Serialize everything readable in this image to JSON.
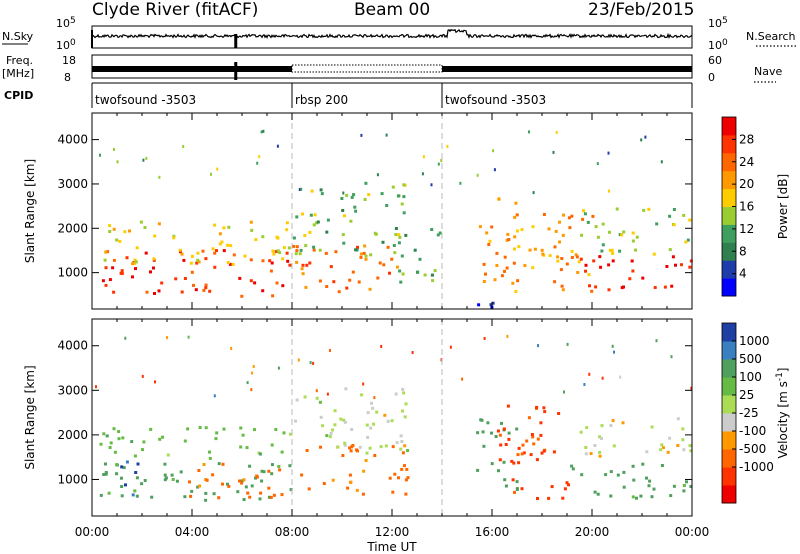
{
  "header": {
    "station": "Clyde River (fitACF)",
    "beam": "Beam 00",
    "date": "23/Feb/2015"
  },
  "strips": {
    "nsky_label": "N.Sky",
    "nsearch_label": "N.Search",
    "nsky_ticks": [
      "10^5",
      "10^0"
    ],
    "nsearch_ticks": [
      "10^5",
      "10^0"
    ],
    "freq_label": "Freq.",
    "freq_unit": "[MHz]",
    "freq_ticks": [
      "18",
      "8"
    ],
    "nave_label": "Nave",
    "nave_ticks": [
      "60",
      "0"
    ],
    "cpid_label": "CPID",
    "cpid_segments": [
      {
        "name": "twofsound -3503",
        "start": 0,
        "end": 8
      },
      {
        "name": "rbsp 200",
        "start": 8,
        "end": 14
      },
      {
        "name": "twofsound -3503",
        "start": 14,
        "end": 24
      }
    ]
  },
  "chart_data": [
    {
      "type": "heatmap",
      "title": "",
      "xlabel": "Time UT",
      "ylabel": "Slant Range [km]",
      "xlim": [
        0,
        24
      ],
      "ylim": [
        180,
        4600
      ],
      "x_tick_values": [
        0,
        4,
        8,
        12,
        16,
        20,
        24
      ],
      "x_tick_labels": [
        "00:00",
        "04:00",
        "08:00",
        "12:00",
        "16:00",
        "20:00",
        "00:00"
      ],
      "y_tick_values": [
        1000,
        2000,
        3000,
        4000
      ],
      "y_tick_labels": [
        "1000",
        "2000",
        "3000",
        "4000"
      ],
      "colorbar": {
        "label": "Power [dB]",
        "range": [
          0,
          32
        ],
        "ticks": [
          "4",
          "8",
          "12",
          "16",
          "20",
          "24",
          "28"
        ],
        "colors": [
          "#0000ff",
          "#1e3caa",
          "#2f7f4f",
          "#3f9f5f",
          "#9acd32",
          "#ffcc00",
          "#ff9900",
          "#ff6600",
          "#ff3300",
          "#ee0000"
        ]
      },
      "scatter_regions": [
        {
          "x": [
            0.3,
            8.0
          ],
          "range": [
            500,
            1600
          ],
          "value": 28
        },
        {
          "x": [
            0.3,
            8.0
          ],
          "range": [
            1200,
            2200
          ],
          "value": 17
        },
        {
          "x": [
            8.0,
            12.6
          ],
          "range": [
            600,
            1700
          ],
          "value": 24
        },
        {
          "x": [
            8.0,
            12.6
          ],
          "range": [
            1400,
            3100
          ],
          "value": 13
        },
        {
          "x": [
            12.0,
            14.0
          ],
          "range": [
            800,
            2100
          ],
          "value": 11
        },
        {
          "x": [
            12.0,
            16.0
          ],
          "range": [
            200,
            350
          ],
          "value": 3
        },
        {
          "x": [
            15.3,
            20.0
          ],
          "range": [
            600,
            2700
          ],
          "value": 21
        },
        {
          "x": [
            19.5,
            24.0
          ],
          "range": [
            600,
            1400
          ],
          "value": 30
        },
        {
          "x": [
            19.5,
            24.0
          ],
          "range": [
            1400,
            2500
          ],
          "value": 14
        }
      ]
    },
    {
      "type": "heatmap",
      "title": "",
      "xlabel": "Time UT",
      "ylabel": "Slant Range [km]",
      "xlim": [
        0,
        24
      ],
      "ylim": [
        180,
        4600
      ],
      "x_tick_values": [
        0,
        4,
        8,
        12,
        16,
        20,
        24
      ],
      "x_tick_labels": [
        "00:00",
        "04:00",
        "08:00",
        "12:00",
        "16:00",
        "20:00",
        "00:00"
      ],
      "y_tick_values": [
        1000,
        2000,
        3000,
        4000
      ],
      "y_tick_labels": [
        "1000",
        "2000",
        "3000",
        "4000"
      ],
      "colorbar": {
        "label": "Velocity [m s^-1]",
        "ticks": [
          "1000",
          "500",
          "100",
          "25",
          "-25",
          "-100",
          "-500",
          "-1000"
        ],
        "colors": [
          "#1f3fa3",
          "#3a7fbf",
          "#4f9f5f",
          "#66bb44",
          "#aadd55",
          "#cccccc",
          "#ff9900",
          "#ff6600",
          "#ff3300",
          "#ee0000"
        ]
      },
      "scatter_regions": [
        {
          "x": [
            0.3,
            8.0
          ],
          "range": [
            550,
            1500
          ],
          "value": 150
        },
        {
          "x": [
            1.0,
            1.8
          ],
          "range": [
            600,
            1600
          ],
          "value": 700
        },
        {
          "x": [
            0.3,
            8.0
          ],
          "range": [
            1500,
            2200
          ],
          "value": 60
        },
        {
          "x": [
            3.5,
            8.0
          ],
          "range": [
            600,
            1400
          ],
          "value": -150
        },
        {
          "x": [
            8.0,
            12.6
          ],
          "range": [
            700,
            1800
          ],
          "value": -150
        },
        {
          "x": [
            8.0,
            12.6
          ],
          "range": [
            1600,
            3100
          ],
          "value": 0
        },
        {
          "x": [
            15.3,
            17.0
          ],
          "range": [
            800,
            2500
          ],
          "value": 200
        },
        {
          "x": [
            16.0,
            19.0
          ],
          "range": [
            600,
            2700
          ],
          "value": -400
        },
        {
          "x": [
            19.0,
            24.0
          ],
          "range": [
            600,
            1400
          ],
          "value": 150
        },
        {
          "x": [
            19.5,
            24.0
          ],
          "range": [
            1500,
            2400
          ],
          "value": -10
        }
      ]
    }
  ]
}
